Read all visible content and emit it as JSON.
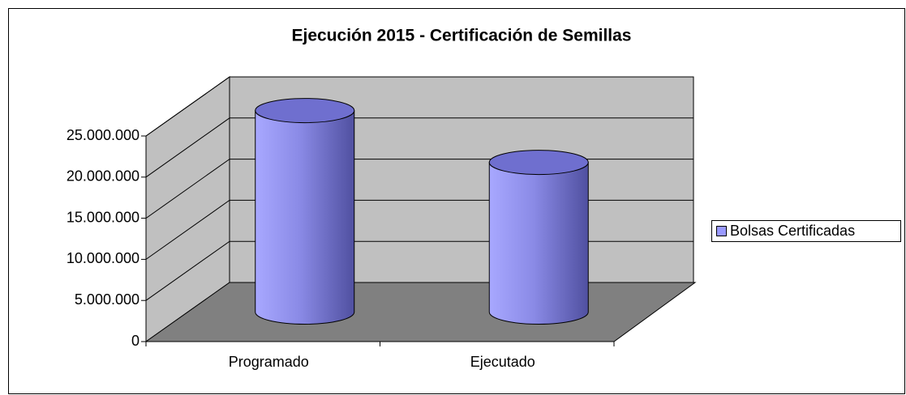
{
  "chart_data": {
    "type": "bar3d",
    "title": "Ejecución 2015 - Certificación de Semillas",
    "categories": [
      "Programado",
      "Ejecutado"
    ],
    "series": [
      {
        "name": "Bolsas Certificadas",
        "color": "#9999ff",
        "values": [
          24500000,
          18200000
        ]
      }
    ],
    "ylim": [
      0,
      25000000
    ],
    "yticks": [
      0,
      {
        "value": 5000000,
        "label": "5.000.000"
      },
      {
        "value": 10000000,
        "label": "10.000.000"
      },
      {
        "value": 15000000,
        "label": "15.000.000"
      },
      {
        "value": 20000000,
        "label": "20.000.000"
      },
      {
        "value": 25000000,
        "label": "25.000.000"
      }
    ],
    "grid": true,
    "legend": "right"
  }
}
